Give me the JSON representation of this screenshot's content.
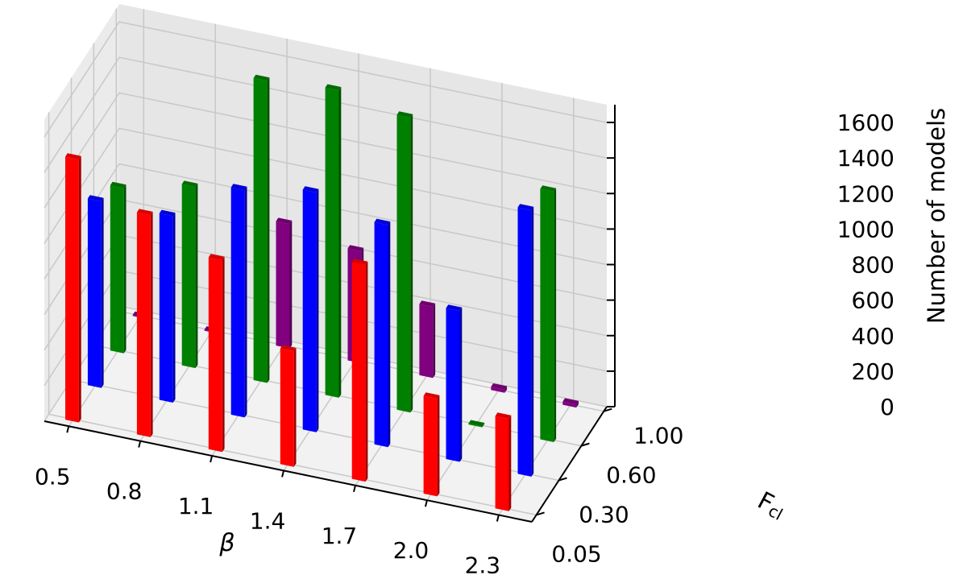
{
  "chart_data": {
    "type": "bar3d",
    "title": "",
    "xlabel": "β",
    "ylabel": "F",
    "ylabel_sub": "cl",
    "zlabel": "Number of models",
    "x_ticks": [
      "0.5",
      "0.8",
      "1.1",
      "1.4",
      "1.7",
      "2.0",
      "2.3"
    ],
    "y_ticks": [
      "0.05",
      "0.30",
      "0.60",
      "1.00"
    ],
    "z_ticks": [
      "0",
      "200",
      "400",
      "600",
      "800",
      "1000",
      "1200",
      "1400",
      "1600"
    ],
    "zlim": [
      0,
      1700
    ],
    "grid": true,
    "series": [
      {
        "name": "",
        "y": "0.05",
        "color": "#ff0000",
        "values": [
          1480,
          1250,
          1080,
          650,
          1220,
          550,
          520
        ]
      },
      {
        "name": "",
        "y": "0.30",
        "color": "#0000ff",
        "values": [
          1050,
          1050,
          1280,
          1350,
          1250,
          850,
          1500
        ]
      },
      {
        "name": "",
        "y": "0.60",
        "color": "#008000",
        "values": [
          930,
          1020,
          1700,
          1730,
          1660,
          0,
          1410
        ]
      },
      {
        "name": "",
        "y": "1.00",
        "color": "#800080",
        "values": [
          0,
          0,
          700,
          630,
          400,
          18,
          18
        ]
      }
    ]
  }
}
